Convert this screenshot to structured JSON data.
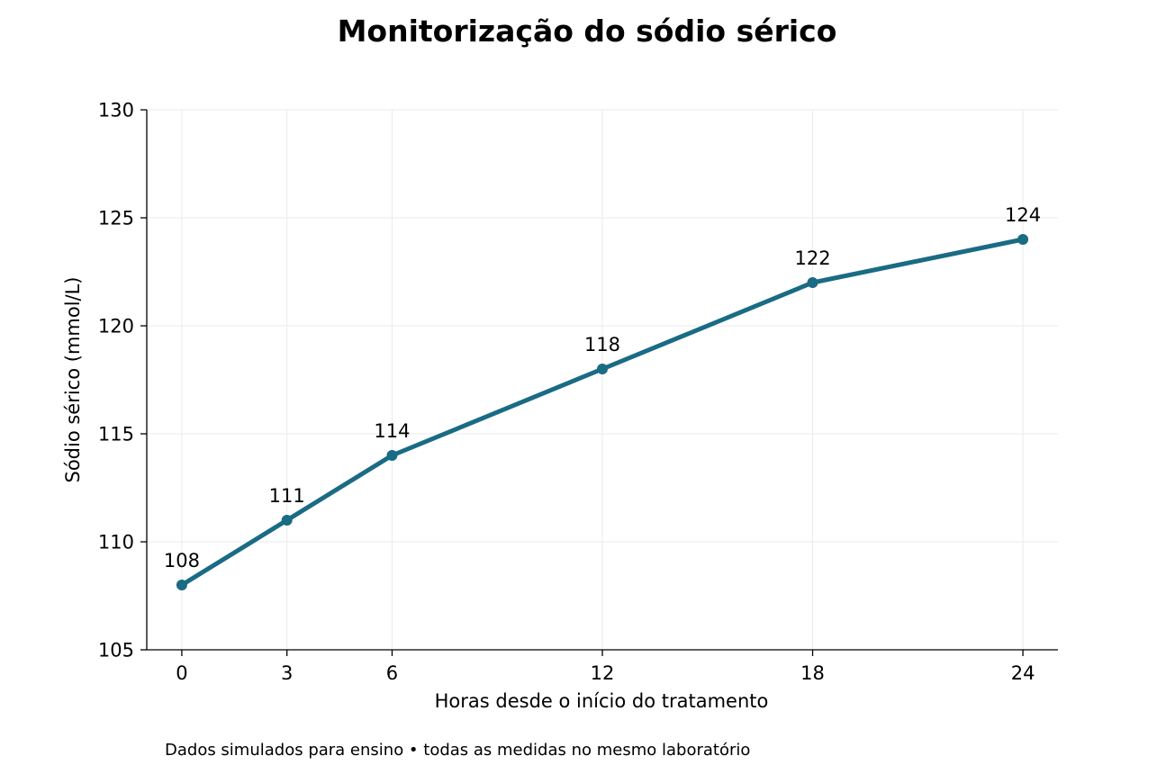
{
  "chart_data": {
    "type": "line",
    "title": "Monitorização do sódio sérico",
    "xlabel": "Horas desde o início do tratamento",
    "ylabel": "Sódio sérico (mmol/L)",
    "x": [
      0,
      3,
      6,
      12,
      18,
      24
    ],
    "series": [
      {
        "values": [
          108,
          111,
          114,
          118,
          122,
          124
        ],
        "data_labels": [
          "108",
          "111",
          "114",
          "118",
          "122",
          "124"
        ],
        "color": "#1a6b84"
      }
    ],
    "x_ticks": [
      "0",
      "3",
      "6",
      "12",
      "18",
      "24"
    ],
    "y_ticks": [
      "105",
      "110",
      "115",
      "120",
      "125",
      "130"
    ],
    "xlim": [
      -1,
      25
    ],
    "ylim": [
      105,
      130
    ],
    "grid": true,
    "legend": "none",
    "note": "Dados simulados para ensino • todas as medidas no mesmo laboratório"
  }
}
